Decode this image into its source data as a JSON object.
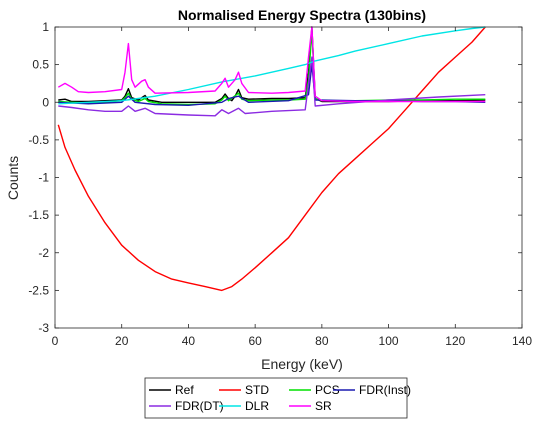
{
  "chart_data": {
    "type": "line",
    "title": "Normalised Energy Spectra (130bins)",
    "xlabel": "Energy (keV)",
    "ylabel": "Counts",
    "xlim": [
      0,
      140
    ],
    "ylim": [
      -3,
      1
    ],
    "xticks": [
      "0",
      "20",
      "40",
      "60",
      "80",
      "100",
      "120",
      "140"
    ],
    "yticks": [
      "-3",
      "-2.5",
      "-2",
      "-1.5",
      "-1",
      "-0.5",
      "0",
      "0.5",
      "1"
    ],
    "grid": false,
    "legend_position": "bottom-outside",
    "series": [
      {
        "name": "Ref",
        "color": "#000000",
        "points": [
          [
            1,
            0.03
          ],
          [
            3,
            0.04
          ],
          [
            5,
            0.01
          ],
          [
            10,
            0.01
          ],
          [
            15,
            0.02
          ],
          [
            20,
            0.03
          ],
          [
            21,
            0.08
          ],
          [
            22,
            0.18
          ],
          [
            23,
            0.06
          ],
          [
            25,
            0.03
          ],
          [
            26,
            0.06
          ],
          [
            27,
            0.09
          ],
          [
            28,
            0.03
          ],
          [
            32,
            0.0
          ],
          [
            40,
            0.0
          ],
          [
            48,
            0.0
          ],
          [
            50,
            0.05
          ],
          [
            51,
            0.11
          ],
          [
            52,
            0.05
          ],
          [
            53,
            0.02
          ],
          [
            54,
            0.08
          ],
          [
            55,
            0.17
          ],
          [
            56,
            0.06
          ],
          [
            58,
            0.04
          ],
          [
            65,
            0.05
          ],
          [
            70,
            0.05
          ],
          [
            75,
            0.06
          ],
          [
            76,
            0.4
          ],
          [
            77,
            1.0
          ],
          [
            78,
            0.05
          ],
          [
            80,
            0.01
          ],
          [
            90,
            0.01
          ],
          [
            100,
            0.01
          ],
          [
            110,
            0.02
          ],
          [
            120,
            0.02
          ],
          [
            129,
            0.03
          ]
        ]
      },
      {
        "name": "STD",
        "color": "#ff0000",
        "points": [
          [
            1,
            -0.3
          ],
          [
            3,
            -0.6
          ],
          [
            6,
            -0.9
          ],
          [
            10,
            -1.25
          ],
          [
            15,
            -1.6
          ],
          [
            20,
            -1.9
          ],
          [
            25,
            -2.1
          ],
          [
            30,
            -2.25
          ],
          [
            35,
            -2.35
          ],
          [
            40,
            -2.4
          ],
          [
            45,
            -2.45
          ],
          [
            50,
            -2.5
          ],
          [
            53,
            -2.45
          ],
          [
            56,
            -2.35
          ],
          [
            60,
            -2.2
          ],
          [
            65,
            -2.0
          ],
          [
            70,
            -1.8
          ],
          [
            75,
            -1.5
          ],
          [
            80,
            -1.2
          ],
          [
            85,
            -0.95
          ],
          [
            90,
            -0.75
          ],
          [
            95,
            -0.55
          ],
          [
            100,
            -0.35
          ],
          [
            105,
            -0.1
          ],
          [
            110,
            0.15
          ],
          [
            115,
            0.4
          ],
          [
            120,
            0.6
          ],
          [
            125,
            0.8
          ],
          [
            129,
            1.0
          ]
        ]
      },
      {
        "name": "PCS",
        "color": "#00e000",
        "points": [
          [
            1,
            0.01
          ],
          [
            5,
            0.0
          ],
          [
            10,
            -0.01
          ],
          [
            15,
            0.0
          ],
          [
            20,
            0.02
          ],
          [
            21,
            0.06
          ],
          [
            22,
            0.12
          ],
          [
            23,
            0.04
          ],
          [
            25,
            0.01
          ],
          [
            27,
            0.05
          ],
          [
            28,
            0.01
          ],
          [
            32,
            -0.02
          ],
          [
            40,
            -0.03
          ],
          [
            48,
            -0.02
          ],
          [
            50,
            0.03
          ],
          [
            51,
            0.08
          ],
          [
            52,
            0.02
          ],
          [
            55,
            0.12
          ],
          [
            56,
            0.04
          ],
          [
            58,
            0.02
          ],
          [
            65,
            0.03
          ],
          [
            70,
            0.03
          ],
          [
            75,
            0.04
          ],
          [
            76,
            0.3
          ],
          [
            77,
            0.95
          ],
          [
            78,
            0.05
          ],
          [
            80,
            0.02
          ],
          [
            90,
            0.02
          ],
          [
            100,
            0.03
          ],
          [
            110,
            0.03
          ],
          [
            120,
            0.04
          ],
          [
            129,
            0.04
          ]
        ]
      },
      {
        "name": "FDR(Inst)",
        "color": "#1a1ab0",
        "points": [
          [
            1,
            0.0
          ],
          [
            10,
            -0.02
          ],
          [
            20,
            0.0
          ],
          [
            22,
            0.08
          ],
          [
            24,
            0.0
          ],
          [
            30,
            -0.03
          ],
          [
            40,
            -0.04
          ],
          [
            50,
            0.0
          ],
          [
            52,
            0.05
          ],
          [
            55,
            0.08
          ],
          [
            58,
            0.0
          ],
          [
            70,
            0.02
          ],
          [
            76,
            0.1
          ],
          [
            77,
            0.5
          ],
          [
            78,
            0.03
          ],
          [
            90,
            0.02
          ],
          [
            100,
            0.02
          ],
          [
            110,
            0.01
          ],
          [
            120,
            0.01
          ],
          [
            129,
            0.0
          ]
        ]
      },
      {
        "name": "FDR(DT)",
        "color": "#8b2be2",
        "points": [
          [
            1,
            -0.05
          ],
          [
            5,
            -0.07
          ],
          [
            10,
            -0.1
          ],
          [
            15,
            -0.12
          ],
          [
            20,
            -0.12
          ],
          [
            22,
            -0.05
          ],
          [
            24,
            -0.12
          ],
          [
            27,
            -0.08
          ],
          [
            30,
            -0.15
          ],
          [
            40,
            -0.17
          ],
          [
            48,
            -0.18
          ],
          [
            50,
            -0.1
          ],
          [
            52,
            -0.15
          ],
          [
            55,
            -0.08
          ],
          [
            57,
            -0.15
          ],
          [
            65,
            -0.12
          ],
          [
            75,
            -0.1
          ],
          [
            77,
            0.6
          ],
          [
            78,
            -0.05
          ],
          [
            85,
            -0.02
          ],
          [
            100,
            0.03
          ],
          [
            115,
            0.07
          ],
          [
            129,
            0.1
          ]
        ]
      },
      {
        "name": "DLR",
        "color": "#00e5e5",
        "points": [
          [
            1,
            -0.02
          ],
          [
            10,
            0.0
          ],
          [
            20,
            0.02
          ],
          [
            30,
            0.08
          ],
          [
            40,
            0.17
          ],
          [
            50,
            0.27
          ],
          [
            60,
            0.35
          ],
          [
            70,
            0.45
          ],
          [
            75,
            0.5
          ],
          [
            78,
            0.55
          ],
          [
            85,
            0.62
          ],
          [
            90,
            0.68
          ],
          [
            100,
            0.78
          ],
          [
            110,
            0.88
          ],
          [
            120,
            0.95
          ],
          [
            125,
            0.98
          ],
          [
            129,
            1.0
          ]
        ]
      },
      {
        "name": "SR",
        "color": "#ff00ff",
        "points": [
          [
            1,
            0.2
          ],
          [
            3,
            0.25
          ],
          [
            5,
            0.2
          ],
          [
            7,
            0.14
          ],
          [
            10,
            0.13
          ],
          [
            15,
            0.14
          ],
          [
            20,
            0.17
          ],
          [
            21,
            0.4
          ],
          [
            22,
            0.78
          ],
          [
            23,
            0.3
          ],
          [
            24,
            0.2
          ],
          [
            26,
            0.28
          ],
          [
            27,
            0.3
          ],
          [
            28,
            0.2
          ],
          [
            30,
            0.12
          ],
          [
            40,
            0.13
          ],
          [
            48,
            0.15
          ],
          [
            50,
            0.25
          ],
          [
            51,
            0.32
          ],
          [
            52,
            0.2
          ],
          [
            54,
            0.3
          ],
          [
            55,
            0.4
          ],
          [
            56,
            0.25
          ],
          [
            58,
            0.13
          ],
          [
            65,
            0.12
          ],
          [
            70,
            0.13
          ],
          [
            75,
            0.15
          ],
          [
            76,
            0.6
          ],
          [
            77,
            1.0
          ],
          [
            78,
            0.08
          ],
          [
            80,
            0.02
          ],
          [
            90,
            0.01
          ],
          [
            100,
            0.01
          ],
          [
            110,
            0.01
          ],
          [
            120,
            0.01
          ],
          [
            129,
            0.01
          ]
        ]
      }
    ],
    "legend_rows": [
      [
        "Ref",
        "STD",
        "PCS",
        "FDR(Inst)"
      ],
      [
        "FDR(DT)",
        "DLR",
        "SR"
      ]
    ]
  }
}
